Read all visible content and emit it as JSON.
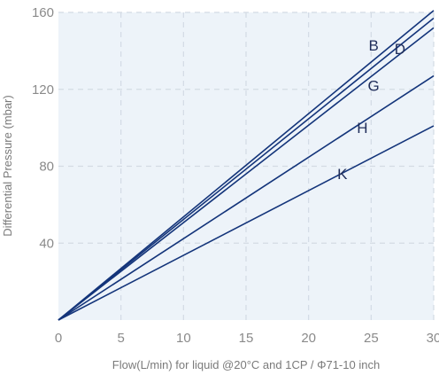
{
  "chart_data": {
    "type": "line",
    "xlabel": "Flow(L/min) for liquid @20°C and 1CP / Φ71-10 inch",
    "ylabel": "Differential Pressure (mbar)",
    "xlim": [
      0,
      30
    ],
    "ylim": [
      0,
      160
    ],
    "x_ticks": [
      0,
      5,
      10,
      15,
      20,
      25,
      30
    ],
    "y_ticks": [
      40,
      80,
      120,
      160
    ],
    "grid": true,
    "colors": {
      "plot_bg": "#edf3f9",
      "grid": "#d3dbe4",
      "line": "#13347a",
      "text": "#8a8a8a"
    },
    "series": [
      {
        "name": "B",
        "x": [
          0,
          30
        ],
        "y": [
          0,
          161
        ],
        "label_at": [
          25.2,
          143
        ]
      },
      {
        "name": "D",
        "x": [
          0,
          30
        ],
        "y": [
          0,
          157
        ],
        "label_at": [
          27.3,
          141
        ]
      },
      {
        "name": "G",
        "x": [
          0,
          30
        ],
        "y": [
          0,
          152
        ],
        "label_at": [
          25.2,
          122
        ]
      },
      {
        "name": "H",
        "x": [
          0,
          30
        ],
        "y": [
          0,
          127
        ],
        "label_at": [
          24.3,
          100
        ]
      },
      {
        "name": "K",
        "x": [
          0,
          30
        ],
        "y": [
          0,
          101
        ],
        "label_at": [
          22.7,
          76
        ]
      }
    ]
  }
}
